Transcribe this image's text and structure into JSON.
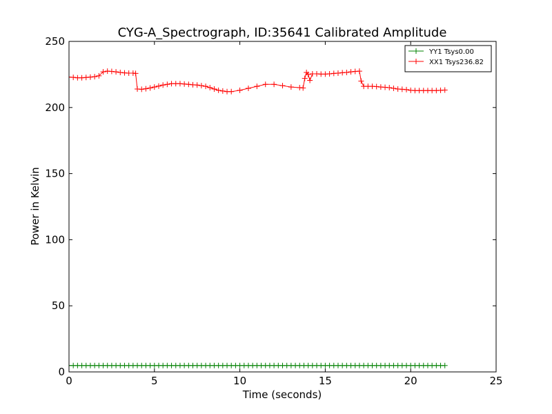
{
  "chart_data": {
    "type": "line",
    "title": "CYG-A_Spectrograph, ID:35641 Calibrated Amplitude",
    "xlabel": "Time (seconds)",
    "ylabel": "Power in Kelvin",
    "xlim": [
      0,
      25
    ],
    "ylim": [
      0,
      250
    ],
    "xticks": [
      0,
      5,
      10,
      15,
      20,
      25
    ],
    "yticks": [
      0,
      50,
      100,
      150,
      200,
      250
    ],
    "grid": false,
    "legend_position": "top-right",
    "series": [
      {
        "name": "YY1 Tsys0.00",
        "color": "#008000",
        "marker": "plus",
        "x_start": 0,
        "x_end": 22,
        "point_count": 89,
        "values": [
          4.8
        ]
      },
      {
        "name": "XX1 Tsys236.82",
        "color": "#ff0000",
        "marker": "plus",
        "x": [
          0.0,
          0.25,
          0.5,
          0.75,
          1.0,
          1.25,
          1.5,
          1.75,
          2.0,
          2.25,
          2.5,
          2.75,
          3.0,
          3.25,
          3.5,
          3.75,
          3.9,
          4.0,
          4.25,
          4.5,
          4.75,
          5.0,
          5.25,
          5.5,
          5.75,
          6.0,
          6.25,
          6.5,
          6.75,
          7.0,
          7.25,
          7.5,
          7.75,
          8.0,
          8.25,
          8.5,
          8.75,
          9.0,
          9.25,
          9.5,
          10.0,
          10.5,
          11.0,
          11.5,
          12.0,
          12.5,
          13.0,
          13.5,
          13.7,
          13.8,
          13.9,
          14.0,
          14.1,
          14.25,
          14.5,
          14.75,
          15.0,
          15.25,
          15.5,
          15.75,
          16.0,
          16.25,
          16.5,
          16.75,
          17.0,
          17.1,
          17.25,
          17.5,
          17.75,
          18.0,
          18.25,
          18.5,
          18.75,
          19.0,
          19.25,
          19.5,
          19.75,
          20.0,
          20.25,
          20.5,
          20.75,
          21.0,
          21.25,
          21.5,
          21.75,
          22.0
        ],
        "values": [
          223,
          222.8,
          222.5,
          222.5,
          222.7,
          223,
          223.3,
          224,
          227,
          227.5,
          227.3,
          227,
          226.5,
          226.2,
          226,
          226,
          225.8,
          214,
          213.8,
          214.2,
          214.8,
          215.5,
          216.2,
          217,
          217.5,
          218,
          218,
          218,
          217.8,
          217.5,
          217.2,
          217,
          216.5,
          216,
          215,
          214,
          213,
          212.5,
          212,
          212,
          213,
          214.5,
          216,
          217.5,
          217.5,
          216.5,
          215.5,
          215,
          214.8,
          222,
          226.5,
          225,
          220.5,
          225.5,
          225.5,
          225.3,
          225.3,
          225.5,
          225.8,
          226,
          226.3,
          226.5,
          227,
          227.3,
          227.5,
          220,
          216,
          216,
          216,
          215.8,
          215.5,
          215.3,
          215,
          214.5,
          214,
          213.8,
          213.5,
          213,
          212.8,
          212.8,
          212.8,
          212.8,
          212.8,
          212.8,
          213,
          213.2
        ]
      }
    ]
  }
}
